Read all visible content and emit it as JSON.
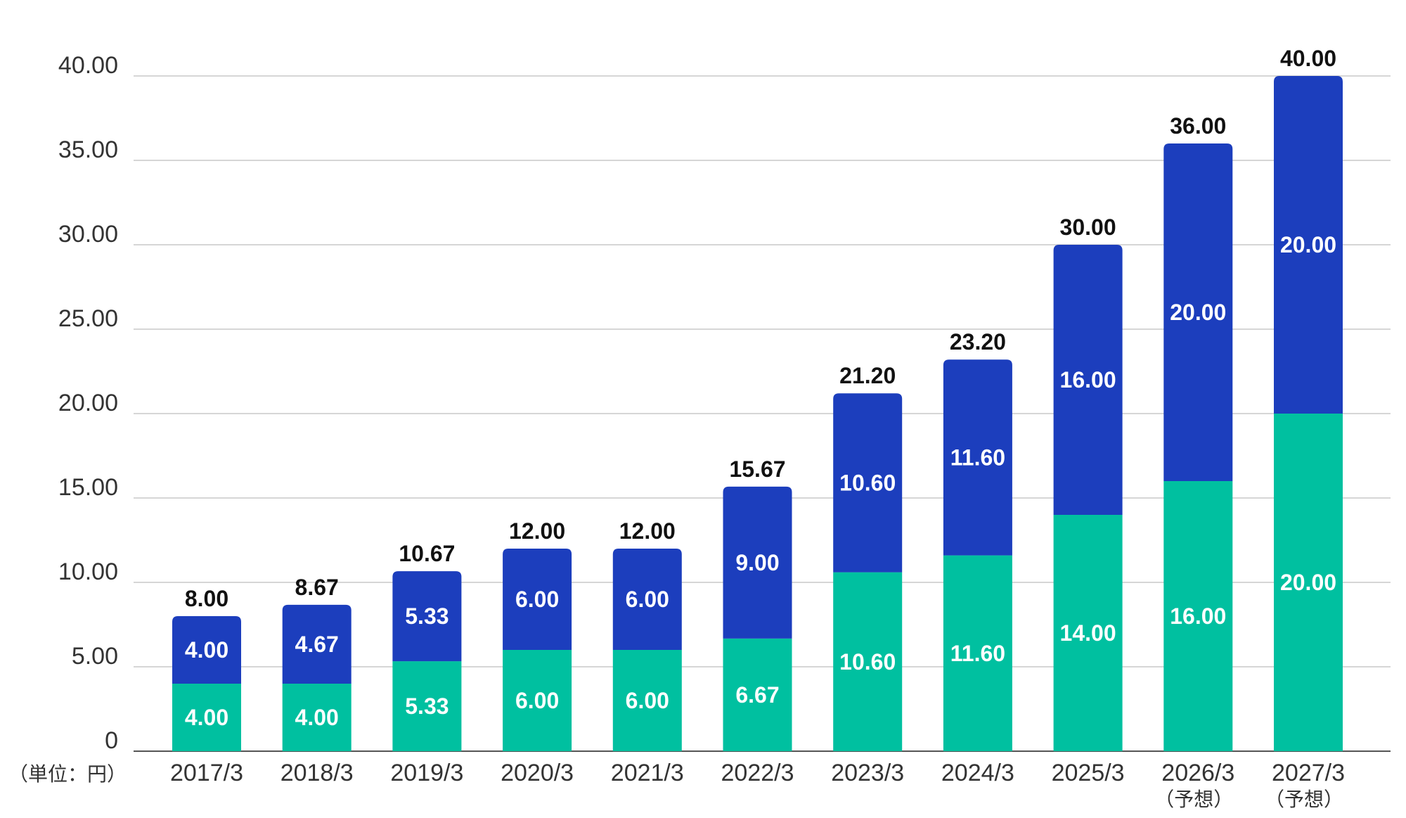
{
  "chart_data": {
    "type": "bar",
    "stacked": true,
    "unit_label": "（単位：円）",
    "categories": [
      {
        "label": "2017/3",
        "sub": ""
      },
      {
        "label": "2018/3",
        "sub": ""
      },
      {
        "label": "2019/3",
        "sub": ""
      },
      {
        "label": "2020/3",
        "sub": ""
      },
      {
        "label": "2021/3",
        "sub": ""
      },
      {
        "label": "2022/3",
        "sub": ""
      },
      {
        "label": "2023/3",
        "sub": ""
      },
      {
        "label": "2024/3",
        "sub": ""
      },
      {
        "label": "2025/3",
        "sub": ""
      },
      {
        "label": "2026/3",
        "sub": "（予想）"
      },
      {
        "label": "2027/3",
        "sub": "（予想）"
      }
    ],
    "series": [
      {
        "color": "#00c0a0",
        "values": [
          4.0,
          4.0,
          5.33,
          6.0,
          6.0,
          6.67,
          10.6,
          11.6,
          14.0,
          16.0,
          20.0
        ],
        "labels": [
          "4.00",
          "4.00",
          "5.33",
          "6.00",
          "6.00",
          "6.67",
          "10.60",
          "11.60",
          "14.00",
          "16.00",
          "20.00"
        ]
      },
      {
        "color": "#1c3ebd",
        "values": [
          4.0,
          4.67,
          5.33,
          6.0,
          6.0,
          9.0,
          10.6,
          11.6,
          16.0,
          20.0,
          20.0
        ],
        "labels": [
          "4.00",
          "4.67",
          "5.33",
          "6.00",
          "6.00",
          "9.00",
          "10.60",
          "11.60",
          "16.00",
          "20.00",
          "20.00"
        ]
      }
    ],
    "totals": [
      "8.00",
      "8.67",
      "10.67",
      "12.00",
      "12.00",
      "15.67",
      "21.20",
      "23.20",
      "30.00",
      "36.00",
      "40.00"
    ],
    "ylim": [
      0,
      40
    ],
    "yticks": [
      "0",
      "5.00",
      "10.00",
      "15.00",
      "20.00",
      "25.00",
      "30.00",
      "35.00",
      "40.00"
    ],
    "grid": true,
    "legend": "none"
  }
}
